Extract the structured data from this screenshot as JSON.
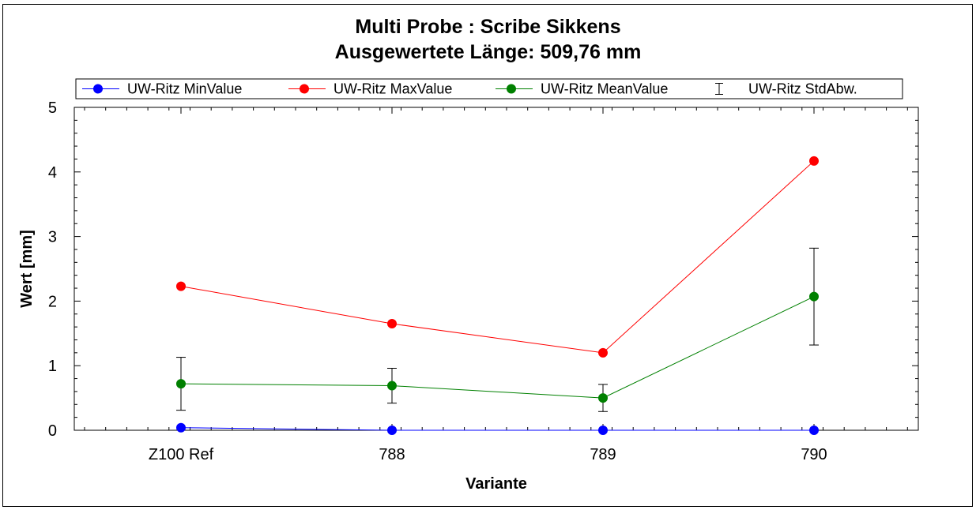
{
  "chart_data": {
    "type": "line",
    "title": "Multi Probe : Scribe Sikkens",
    "subtitle": "Ausgewertete Länge: 509,76 mm",
    "xlabel": "Variante",
    "ylabel": "Wert [mm]",
    "categories": [
      "Z100 Ref",
      "788",
      "789",
      "790"
    ],
    "ylim": [
      0,
      5
    ],
    "yticks": [
      "0",
      "1",
      "2",
      "3",
      "4",
      "5"
    ],
    "grid": false,
    "legend_position": "top",
    "series": [
      {
        "name": "UW-Ritz MinValue",
        "color": "#0000ff",
        "values": [
          0.04,
          0.0,
          0.0,
          0.0
        ]
      },
      {
        "name": "UW-Ritz MaxValue",
        "color": "#ff0000",
        "values": [
          2.23,
          1.65,
          1.2,
          4.17
        ]
      },
      {
        "name": "UW-Ritz MeanValue",
        "color": "#008000",
        "values": [
          0.72,
          0.69,
          0.5,
          2.07
        ]
      }
    ],
    "error_series": {
      "name": "UW-Ritz StdAbw.",
      "color": "#000000",
      "base": "UW-Ritz MeanValue",
      "errors": [
        0.41,
        0.27,
        0.21,
        0.75
      ]
    }
  }
}
